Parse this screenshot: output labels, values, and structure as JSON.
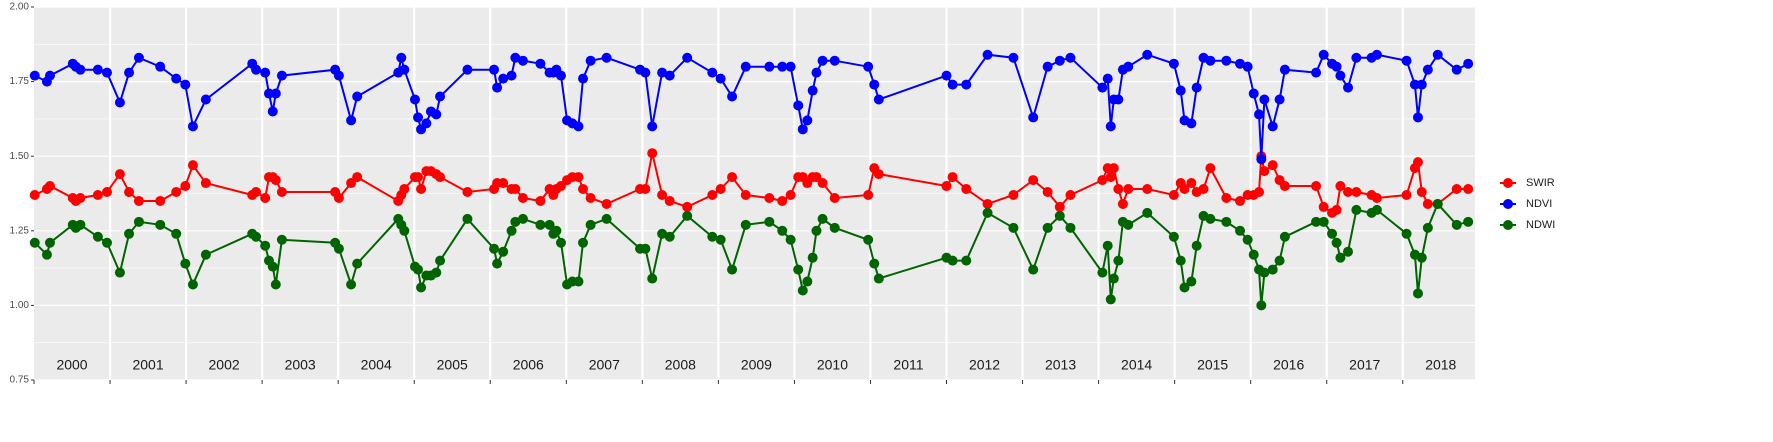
{
  "chart_data": {
    "type": "line",
    "x": [
      2000.01,
      2000.17,
      2000.21,
      2000.51,
      2000.55,
      2000.61,
      2000.84,
      2000.96,
      2001.13,
      2001.25,
      2001.38,
      2001.66,
      2001.87,
      2001.99,
      2002.09,
      2002.26,
      2002.87,
      2002.92,
      2003.04,
      2003.09,
      2003.14,
      2003.18,
      2003.26,
      2003.96,
      2004.01,
      2004.17,
      2004.25,
      2004.79,
      2004.83,
      2004.87,
      2005.01,
      2005.05,
      2005.09,
      2005.16,
      2005.22,
      2005.29,
      2005.34,
      2005.7,
      2006.05,
      2006.09,
      2006.17,
      2006.28,
      2006.33,
      2006.43,
      2006.66,
      2006.78,
      2006.83,
      2006.87,
      2006.93,
      2007.01,
      2007.08,
      2007.16,
      2007.22,
      2007.32,
      2007.53,
      2007.97,
      2008.04,
      2008.13,
      2008.26,
      2008.36,
      2008.59,
      2008.92,
      2009.03,
      2009.18,
      2009.36,
      2009.67,
      2009.84,
      2009.95,
      2010.05,
      2010.11,
      2010.17,
      2010.24,
      2010.29,
      2010.37,
      2010.53,
      2010.97,
      2011.05,
      2011.11,
      2012.0,
      2012.08,
      2012.26,
      2012.54,
      2012.88,
      2013.14,
      2013.33,
      2013.49,
      2013.63,
      2014.05,
      2014.12,
      2014.16,
      2014.2,
      2014.26,
      2014.32,
      2014.39,
      2014.64,
      2014.99,
      2015.08,
      2015.13,
      2015.22,
      2015.29,
      2015.38,
      2015.47,
      2015.68,
      2015.86,
      2015.96,
      2016.04,
      2016.11,
      2016.14,
      2016.18,
      2016.29,
      2016.38,
      2016.45,
      2016.86,
      2016.96,
      2017.07,
      2017.13,
      2017.18,
      2017.28,
      2017.39,
      2017.59,
      2017.66,
      2018.05,
      2018.16,
      2018.2,
      2018.25,
      2018.33,
      2018.46,
      2018.71,
      2018.86
    ],
    "series": [
      {
        "name": "SWIR",
        "color": "#ff0000",
        "values": [
          1.37,
          1.39,
          1.4,
          1.36,
          1.35,
          1.36,
          1.37,
          1.38,
          1.44,
          1.38,
          1.35,
          1.35,
          1.38,
          1.4,
          1.47,
          1.41,
          1.37,
          1.38,
          1.36,
          1.43,
          1.43,
          1.42,
          1.38,
          1.38,
          1.36,
          1.41,
          1.43,
          1.35,
          1.37,
          1.39,
          1.43,
          1.43,
          1.39,
          1.45,
          1.45,
          1.44,
          1.43,
          1.38,
          1.39,
          1.41,
          1.41,
          1.39,
          1.39,
          1.36,
          1.35,
          1.39,
          1.37,
          1.39,
          1.4,
          1.42,
          1.43,
          1.43,
          1.39,
          1.36,
          1.34,
          1.39,
          1.39,
          1.51,
          1.37,
          1.35,
          1.33,
          1.37,
          1.39,
          1.43,
          1.37,
          1.36,
          1.35,
          1.37,
          1.43,
          1.43,
          1.41,
          1.43,
          1.43,
          1.41,
          1.36,
          1.37,
          1.46,
          1.44,
          1.4,
          1.43,
          1.39,
          1.34,
          1.37,
          1.42,
          1.38,
          1.33,
          1.37,
          1.42,
          1.46,
          1.43,
          1.46,
          1.39,
          1.34,
          1.39,
          1.39,
          1.37,
          1.41,
          1.39,
          1.41,
          1.38,
          1.39,
          1.46,
          1.36,
          1.35,
          1.37,
          1.37,
          1.38,
          1.5,
          1.45,
          1.47,
          1.42,
          1.4,
          1.4,
          1.33,
          1.31,
          1.32,
          1.4,
          1.38,
          1.38,
          1.37,
          1.36,
          1.37,
          1.46,
          1.48,
          1.38,
          1.34,
          1.34,
          1.39,
          1.39
        ]
      },
      {
        "name": "NDVI",
        "color": "#0000ff",
        "values": [
          1.77,
          1.75,
          1.77,
          1.81,
          1.8,
          1.79,
          1.79,
          1.78,
          1.68,
          1.78,
          1.83,
          1.8,
          1.76,
          1.74,
          1.6,
          1.69,
          1.81,
          1.79,
          1.78,
          1.71,
          1.65,
          1.71,
          1.77,
          1.79,
          1.77,
          1.62,
          1.7,
          1.78,
          1.83,
          1.79,
          1.69,
          1.63,
          1.59,
          1.61,
          1.65,
          1.64,
          1.7,
          1.79,
          1.79,
          1.73,
          1.76,
          1.77,
          1.83,
          1.82,
          1.81,
          1.78,
          1.78,
          1.79,
          1.77,
          1.62,
          1.61,
          1.6,
          1.76,
          1.82,
          1.83,
          1.79,
          1.78,
          1.6,
          1.78,
          1.77,
          1.83,
          1.78,
          1.76,
          1.7,
          1.8,
          1.8,
          1.8,
          1.8,
          1.67,
          1.59,
          1.62,
          1.72,
          1.78,
          1.82,
          1.82,
          1.8,
          1.74,
          1.69,
          1.77,
          1.74,
          1.74,
          1.84,
          1.83,
          1.63,
          1.8,
          1.82,
          1.83,
          1.73,
          1.76,
          1.6,
          1.69,
          1.69,
          1.79,
          1.8,
          1.84,
          1.81,
          1.72,
          1.62,
          1.61,
          1.73,
          1.83,
          1.82,
          1.82,
          1.81,
          1.8,
          1.71,
          1.64,
          1.49,
          1.69,
          1.6,
          1.69,
          1.79,
          1.78,
          1.84,
          1.81,
          1.8,
          1.77,
          1.73,
          1.83,
          1.83,
          1.84,
          1.82,
          1.74,
          1.63,
          1.74,
          1.79,
          1.84,
          1.79,
          1.81
        ]
      },
      {
        "name": "NDWI",
        "color": "#006400",
        "values": [
          1.21,
          1.17,
          1.21,
          1.27,
          1.26,
          1.27,
          1.23,
          1.21,
          1.11,
          1.24,
          1.28,
          1.27,
          1.24,
          1.14,
          1.07,
          1.17,
          1.24,
          1.23,
          1.2,
          1.15,
          1.13,
          1.07,
          1.22,
          1.21,
          1.19,
          1.07,
          1.14,
          1.29,
          1.27,
          1.25,
          1.13,
          1.12,
          1.06,
          1.1,
          1.1,
          1.11,
          1.15,
          1.29,
          1.19,
          1.14,
          1.18,
          1.25,
          1.28,
          1.29,
          1.27,
          1.27,
          1.24,
          1.25,
          1.21,
          1.07,
          1.08,
          1.08,
          1.21,
          1.27,
          1.29,
          1.19,
          1.19,
          1.09,
          1.24,
          1.23,
          1.3,
          1.23,
          1.22,
          1.12,
          1.27,
          1.28,
          1.25,
          1.22,
          1.12,
          1.05,
          1.08,
          1.16,
          1.25,
          1.29,
          1.26,
          1.22,
          1.14,
          1.09,
          1.16,
          1.15,
          1.15,
          1.31,
          1.26,
          1.12,
          1.26,
          1.3,
          1.26,
          1.11,
          1.2,
          1.02,
          1.09,
          1.15,
          1.28,
          1.27,
          1.31,
          1.23,
          1.15,
          1.06,
          1.08,
          1.2,
          1.3,
          1.29,
          1.28,
          1.25,
          1.22,
          1.17,
          1.12,
          1.0,
          1.11,
          1.12,
          1.15,
          1.23,
          1.28,
          1.28,
          1.24,
          1.21,
          1.16,
          1.18,
          1.32,
          1.31,
          1.32,
          1.24,
          1.17,
          1.04,
          1.16,
          1.26,
          1.34,
          1.27,
          1.28
        ]
      }
    ],
    "xlim": [
      2000,
      2018.95
    ],
    "xticks": [
      {
        "value": 2000.5,
        "label": "2000"
      },
      {
        "value": 2001.5,
        "label": "2001"
      },
      {
        "value": 2002.5,
        "label": "2002"
      },
      {
        "value": 2003.5,
        "label": "2003"
      },
      {
        "value": 2004.5,
        "label": "2004"
      },
      {
        "value": 2005.5,
        "label": "2005"
      },
      {
        "value": 2006.5,
        "label": "2006"
      },
      {
        "value": 2007.5,
        "label": "2007"
      },
      {
        "value": 2008.5,
        "label": "2008"
      },
      {
        "value": 2009.5,
        "label": "2009"
      },
      {
        "value": 2010.5,
        "label": "2010"
      },
      {
        "value": 2011.5,
        "label": "2011"
      },
      {
        "value": 2012.5,
        "label": "2012"
      },
      {
        "value": 2013.5,
        "label": "2013"
      },
      {
        "value": 2014.5,
        "label": "2014"
      },
      {
        "value": 2015.5,
        "label": "2015"
      },
      {
        "value": 2016.5,
        "label": "2016"
      },
      {
        "value": 2017.5,
        "label": "2017"
      },
      {
        "value": 2018.5,
        "label": "2018"
      }
    ],
    "ylim": [
      0.75,
      2.0
    ],
    "yticks": [
      0.75,
      {
        "value": 1.0,
        "label": "1.00"
      },
      1.25,
      {
        "value": 1.5,
        "label": "1.50"
      },
      1.75,
      {
        "value": 2.0,
        "label": "2.00"
      }
    ],
    "grid": true,
    "legend": "right"
  }
}
